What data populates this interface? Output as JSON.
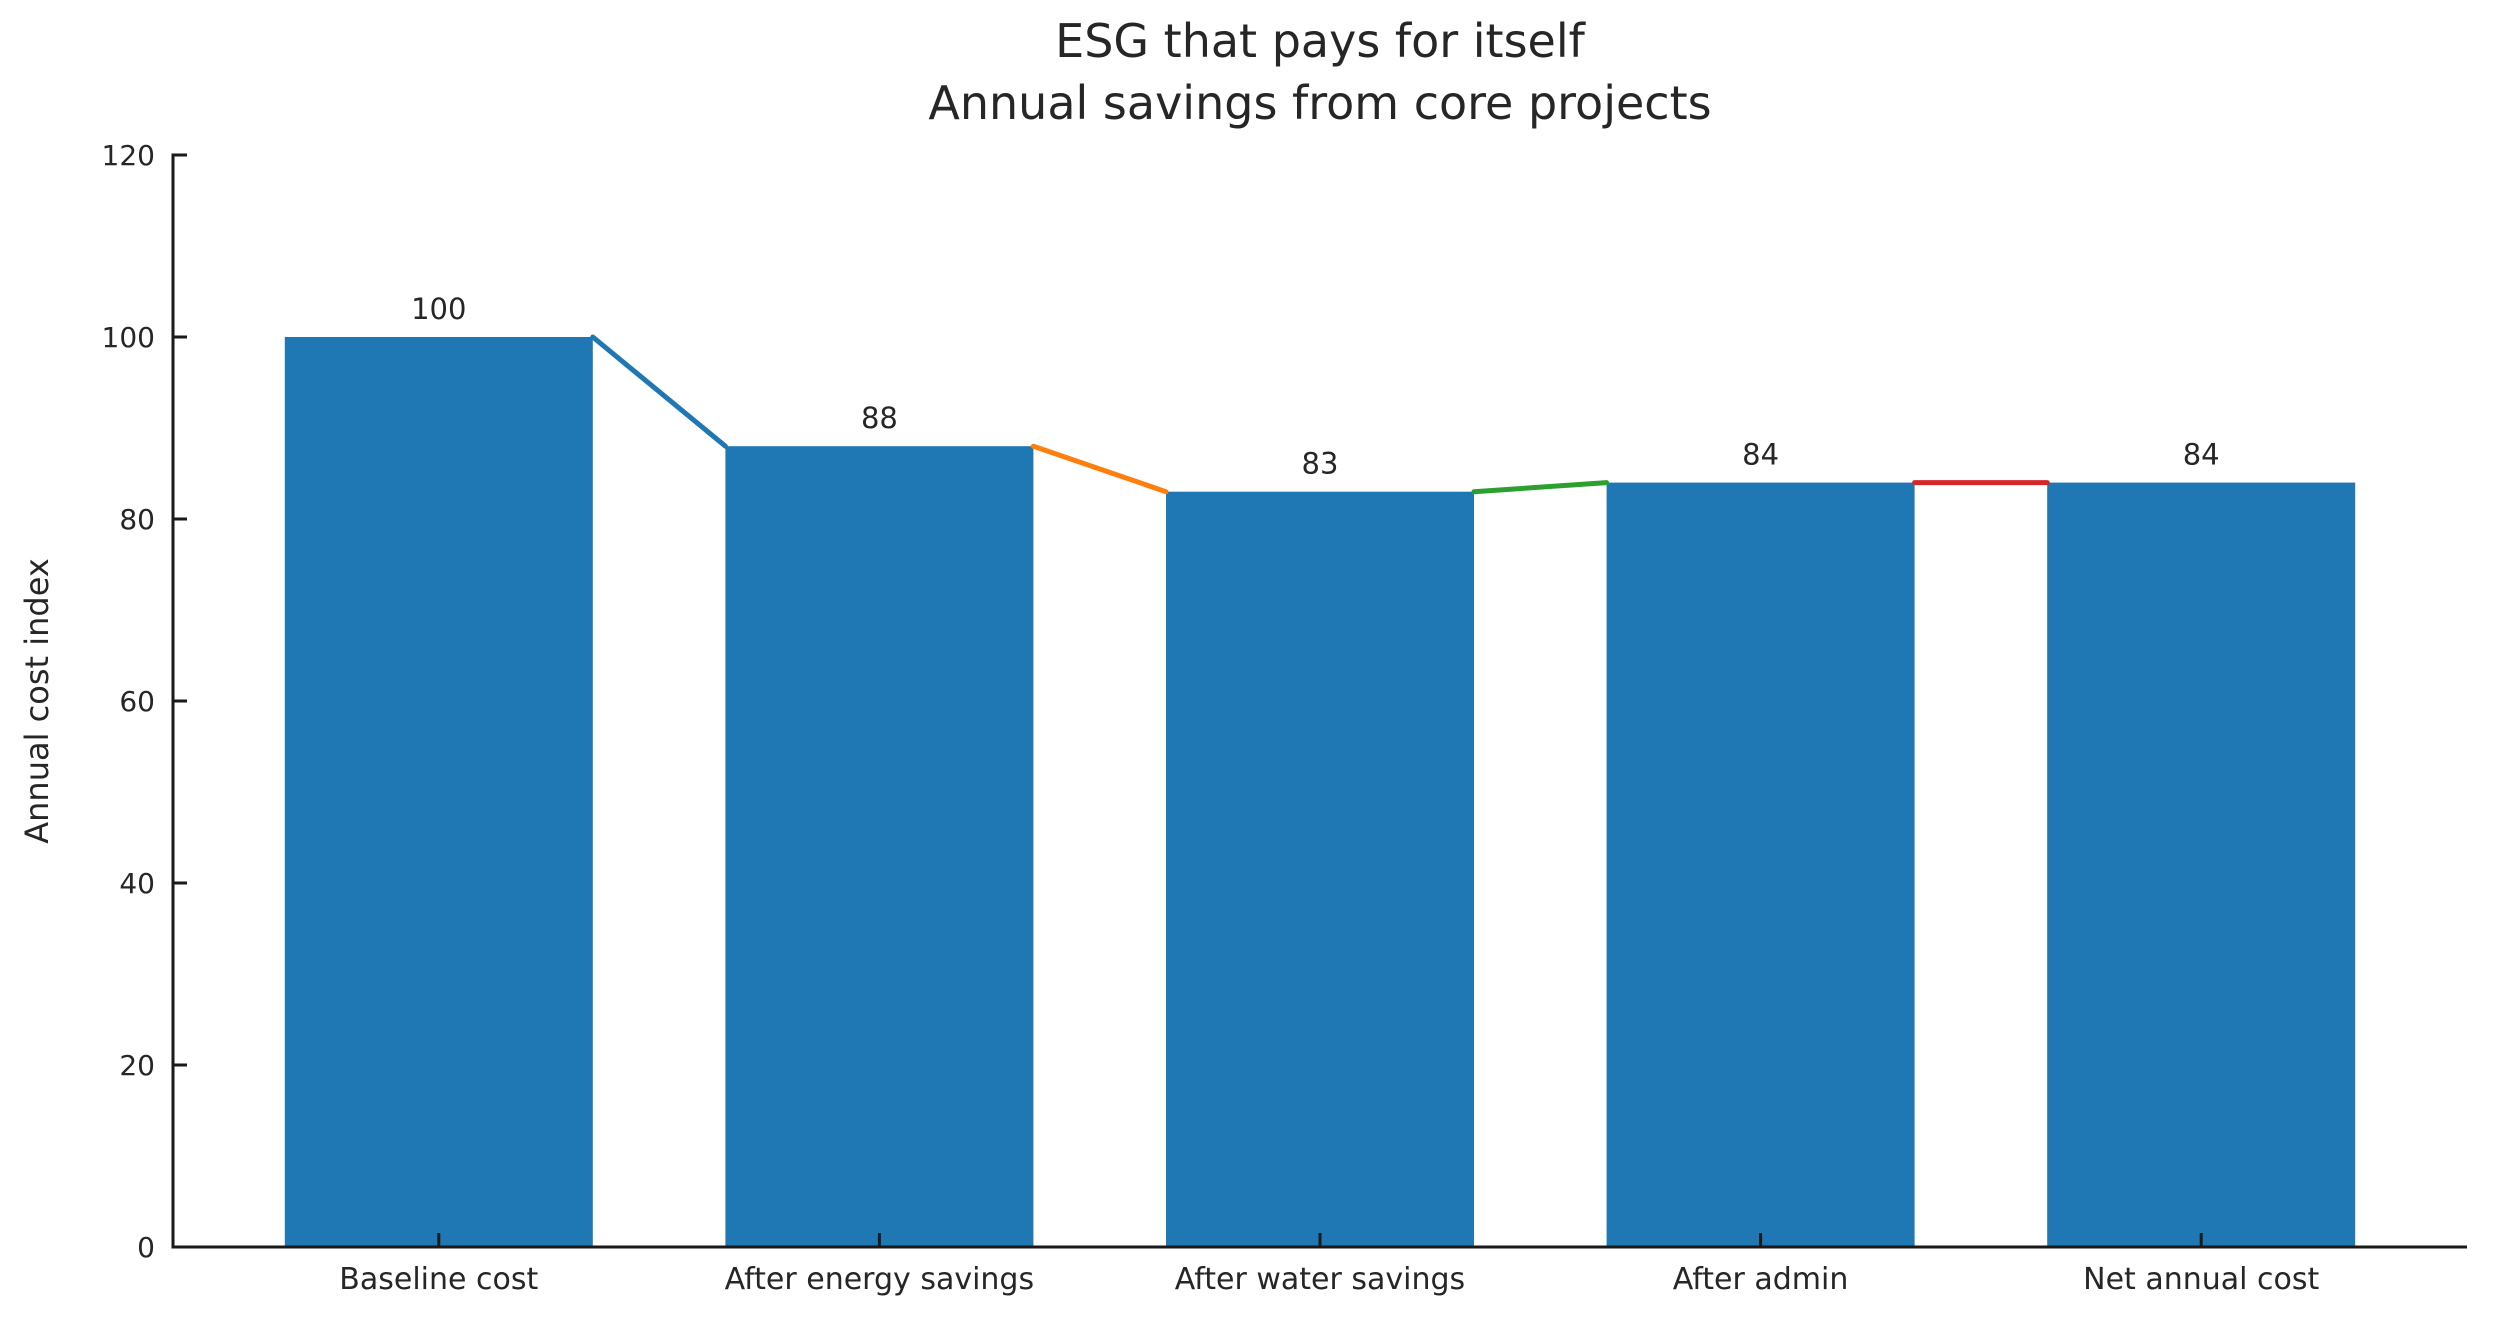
{
  "title": {
    "line1": "ESG that pays for itself",
    "line2": "Annual savings from core projects"
  },
  "chart_data": {
    "type": "bar",
    "subtype": "waterfall-bridge",
    "title": "ESG that pays for itself\nAnnual savings from core projects",
    "categories": [
      "Baseline cost",
      "After energy savings",
      "After water savings",
      "After admin",
      "Net annual cost"
    ],
    "values": [
      100,
      88,
      83,
      84,
      84
    ],
    "bar_value_labels": [
      "100",
      "88",
      "83",
      "84",
      "84"
    ],
    "xlabel": "",
    "ylabel": "Annual cost index",
    "ylim": [
      0,
      120
    ],
    "yticks": [
      0,
      20,
      40,
      60,
      80,
      100,
      120
    ],
    "grid": false,
    "legend_position": "none",
    "bar_color": "#1f77b4",
    "connectors": [
      {
        "from": 0,
        "to": 1,
        "color": "#1f77b4"
      },
      {
        "from": 1,
        "to": 2,
        "color": "#ff7f0e"
      },
      {
        "from": 2,
        "to": 3,
        "color": "#2ca02c"
      },
      {
        "from": 3,
        "to": 4,
        "color": "#d62728"
      }
    ],
    "axis_color": "#1a1a1a",
    "text_color": "#262626"
  }
}
